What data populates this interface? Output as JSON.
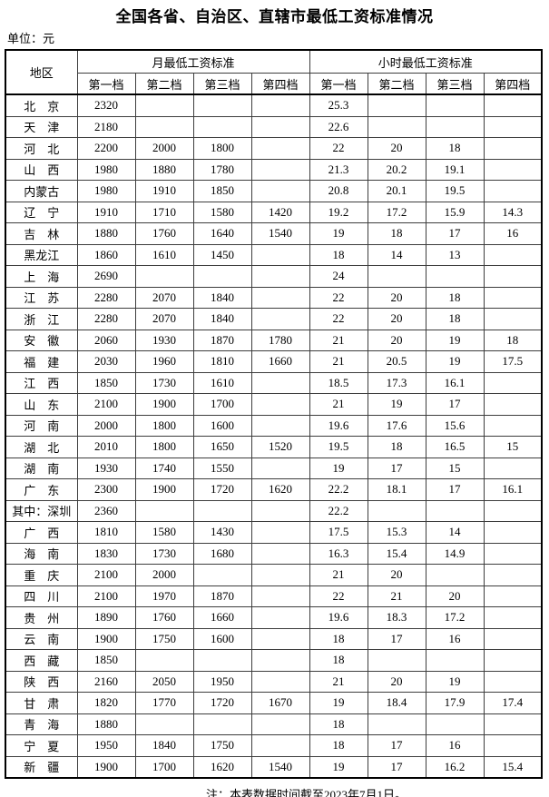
{
  "title": "全国各省、自治区、直辖市最低工资标准情况",
  "unit_label": "单位：元",
  "note": "注：本表数据时间截至2023年7月1日。",
  "table": {
    "region_header": "地区",
    "month_group_header": "月最低工资标准",
    "hour_group_header": "小时最低工资标准",
    "tier_headers": [
      "第一档",
      "第二档",
      "第三档",
      "第四档"
    ],
    "rows": [
      {
        "region": "北　京",
        "monthly": [
          "2320",
          "",
          "",
          ""
        ],
        "hourly": [
          "25.3",
          "",
          "",
          ""
        ]
      },
      {
        "region": "天　津",
        "monthly": [
          "2180",
          "",
          "",
          ""
        ],
        "hourly": [
          "22.6",
          "",
          "",
          ""
        ]
      },
      {
        "region": "河　北",
        "monthly": [
          "2200",
          "2000",
          "1800",
          ""
        ],
        "hourly": [
          "22",
          "20",
          "18",
          ""
        ]
      },
      {
        "region": "山　西",
        "monthly": [
          "1980",
          "1880",
          "1780",
          ""
        ],
        "hourly": [
          "21.3",
          "20.2",
          "19.1",
          ""
        ]
      },
      {
        "region": "内蒙古",
        "monthly": [
          "1980",
          "1910",
          "1850",
          ""
        ],
        "hourly": [
          "20.8",
          "20.1",
          "19.5",
          ""
        ]
      },
      {
        "region": "辽　宁",
        "monthly": [
          "1910",
          "1710",
          "1580",
          "1420"
        ],
        "hourly": [
          "19.2",
          "17.2",
          "15.9",
          "14.3"
        ]
      },
      {
        "region": "吉　林",
        "monthly": [
          "1880",
          "1760",
          "1640",
          "1540"
        ],
        "hourly": [
          "19",
          "18",
          "17",
          "16"
        ]
      },
      {
        "region": "黑龙江",
        "monthly": [
          "1860",
          "1610",
          "1450",
          ""
        ],
        "hourly": [
          "18",
          "14",
          "13",
          ""
        ]
      },
      {
        "region": "上　海",
        "monthly": [
          "2690",
          "",
          "",
          ""
        ],
        "hourly": [
          "24",
          "",
          "",
          ""
        ]
      },
      {
        "region": "江　苏",
        "monthly": [
          "2280",
          "2070",
          "1840",
          ""
        ],
        "hourly": [
          "22",
          "20",
          "18",
          ""
        ]
      },
      {
        "region": "浙　江",
        "monthly": [
          "2280",
          "2070",
          "1840",
          ""
        ],
        "hourly": [
          "22",
          "20",
          "18",
          ""
        ]
      },
      {
        "region": "安　徽",
        "monthly": [
          "2060",
          "1930",
          "1870",
          "1780"
        ],
        "hourly": [
          "21",
          "20",
          "19",
          "18"
        ]
      },
      {
        "region": "福　建",
        "monthly": [
          "2030",
          "1960",
          "1810",
          "1660"
        ],
        "hourly": [
          "21",
          "20.5",
          "19",
          "17.5"
        ]
      },
      {
        "region": "江　西",
        "monthly": [
          "1850",
          "1730",
          "1610",
          ""
        ],
        "hourly": [
          "18.5",
          "17.3",
          "16.1",
          ""
        ]
      },
      {
        "region": "山　东",
        "monthly": [
          "2100",
          "1900",
          "1700",
          ""
        ],
        "hourly": [
          "21",
          "19",
          "17",
          ""
        ]
      },
      {
        "region": "河　南",
        "monthly": [
          "2000",
          "1800",
          "1600",
          ""
        ],
        "hourly": [
          "19.6",
          "17.6",
          "15.6",
          ""
        ]
      },
      {
        "region": "湖　北",
        "monthly": [
          "2010",
          "1800",
          "1650",
          "1520"
        ],
        "hourly": [
          "19.5",
          "18",
          "16.5",
          "15"
        ]
      },
      {
        "region": "湖　南",
        "monthly": [
          "1930",
          "1740",
          "1550",
          ""
        ],
        "hourly": [
          "19",
          "17",
          "15",
          ""
        ]
      },
      {
        "region": "广　东",
        "monthly": [
          "2300",
          "1900",
          "1720",
          "1620"
        ],
        "hourly": [
          "22.2",
          "18.1",
          "17",
          "16.1"
        ]
      },
      {
        "region": "其中：深圳",
        "monthly": [
          "2360",
          "",
          "",
          ""
        ],
        "hourly": [
          "22.2",
          "",
          "",
          ""
        ]
      },
      {
        "region": "广　西",
        "monthly": [
          "1810",
          "1580",
          "1430",
          ""
        ],
        "hourly": [
          "17.5",
          "15.3",
          "14",
          ""
        ]
      },
      {
        "region": "海　南",
        "monthly": [
          "1830",
          "1730",
          "1680",
          ""
        ],
        "hourly": [
          "16.3",
          "15.4",
          "14.9",
          ""
        ]
      },
      {
        "region": "重　庆",
        "monthly": [
          "2100",
          "2000",
          "",
          ""
        ],
        "hourly": [
          "21",
          "20",
          "",
          ""
        ]
      },
      {
        "region": "四　川",
        "monthly": [
          "2100",
          "1970",
          "1870",
          ""
        ],
        "hourly": [
          "22",
          "21",
          "20",
          ""
        ]
      },
      {
        "region": "贵　州",
        "monthly": [
          "1890",
          "1760",
          "1660",
          ""
        ],
        "hourly": [
          "19.6",
          "18.3",
          "17.2",
          ""
        ]
      },
      {
        "region": "云　南",
        "monthly": [
          "1900",
          "1750",
          "1600",
          ""
        ],
        "hourly": [
          "18",
          "17",
          "16",
          ""
        ]
      },
      {
        "region": "西　藏",
        "monthly": [
          "1850",
          "",
          "",
          ""
        ],
        "hourly": [
          "18",
          "",
          "",
          ""
        ]
      },
      {
        "region": "陕　西",
        "monthly": [
          "2160",
          "2050",
          "1950",
          ""
        ],
        "hourly": [
          "21",
          "20",
          "19",
          ""
        ]
      },
      {
        "region": "甘　肃",
        "monthly": [
          "1820",
          "1770",
          "1720",
          "1670"
        ],
        "hourly": [
          "19",
          "18.4",
          "17.9",
          "17.4"
        ]
      },
      {
        "region": "青　海",
        "monthly": [
          "1880",
          "",
          "",
          ""
        ],
        "hourly": [
          "18",
          "",
          "",
          ""
        ]
      },
      {
        "region": "宁　夏",
        "monthly": [
          "1950",
          "1840",
          "1750",
          ""
        ],
        "hourly": [
          "18",
          "17",
          "16",
          ""
        ]
      },
      {
        "region": "新　疆",
        "monthly": [
          "1900",
          "1700",
          "1620",
          "1540"
        ],
        "hourly": [
          "19",
          "17",
          "16.2",
          "15.4"
        ]
      }
    ]
  }
}
